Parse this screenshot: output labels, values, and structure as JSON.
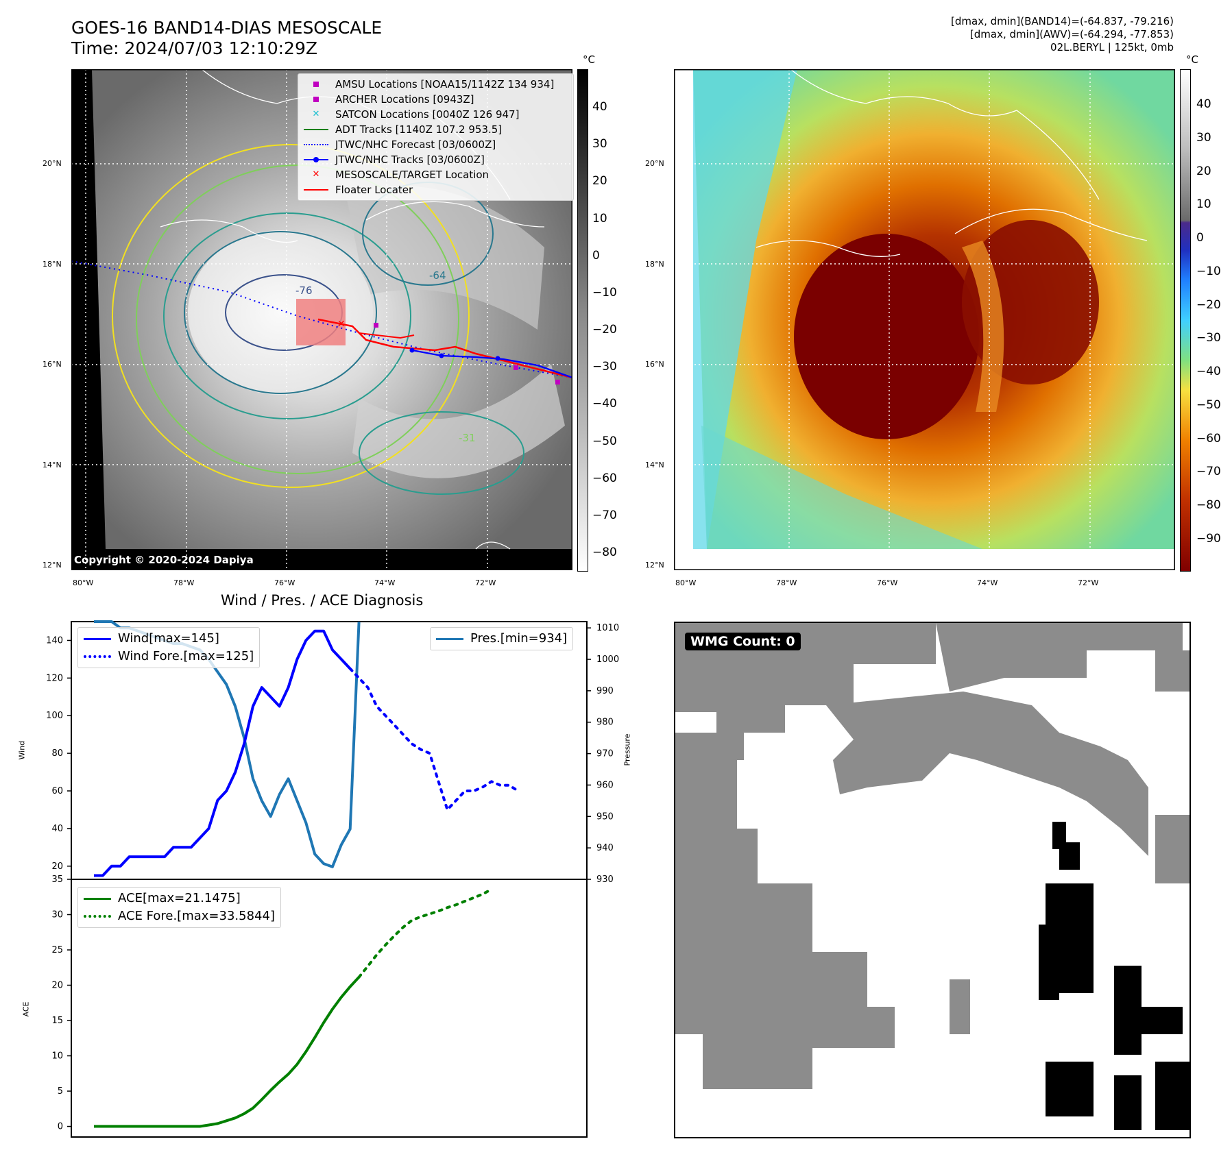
{
  "header": {
    "title_line1": "GOES-16 BAND14-DIAS MESOSCALE",
    "title_line2": "Time: 2024/07/03 12:10:29Z",
    "info_line1": "[dmax, dmin](BAND14)=(-64.837, -79.216)",
    "info_line2": "[dmax, dmin](AWV)=(-64.294, -77.853)",
    "info_line3": "02L.BERYL | 125kt, 0mb"
  },
  "map": {
    "lat_labels": [
      "20°N",
      "18°N",
      "16°N",
      "14°N",
      "12°N"
    ],
    "lon_labels": [
      "80°W",
      "78°W",
      "76°W",
      "74°W",
      "72°W"
    ],
    "unit": "°C",
    "copyright": "Copyright © 2020-2024 Dapiya",
    "contour_labels": [
      "-76",
      "-64",
      "-31"
    ],
    "legend": [
      {
        "label": "AMSU Locations [NOAA15/1142Z 134 934]",
        "color": "#c000c0",
        "marker": "square"
      },
      {
        "label": "ARCHER Locations [0943Z]",
        "color": "#c000c0",
        "marker": "square"
      },
      {
        "label": "SATCON Locations [0040Z 126 947]",
        "color": "#17becf",
        "marker": "x"
      },
      {
        "label": "ADT Tracks [1140Z 107.2 953.5]",
        "color": "#008000",
        "marker": "line"
      },
      {
        "label": "JTWC/NHC Forecast [03/0600Z]",
        "color": "#0000ff",
        "marker": "dotted"
      },
      {
        "label": "JTWC/NHC Tracks [03/0600Z]",
        "color": "#0000ff",
        "marker": "line-dot"
      },
      {
        "label": "MESOSCALE/TARGET Location",
        "color": "#ff0000",
        "marker": "x"
      },
      {
        "label": "Floater Locater",
        "color": "#ff0000",
        "marker": "line"
      }
    ],
    "gray_colorbar_ticks": [
      "40",
      "30",
      "20",
      "10",
      "0",
      "−10",
      "−20",
      "−30",
      "−40",
      "−50",
      "−60",
      "−70",
      "−80"
    ],
    "color_colorbar_ticks": [
      "40",
      "30",
      "20",
      "10",
      "0",
      "−10",
      "−20",
      "−30",
      "−40",
      "−50",
      "−60",
      "−70",
      "−80",
      "−90"
    ]
  },
  "diagnosis": {
    "title": "Wind / Pres. / ACE Diagnosis",
    "wind_ylabel": "Wind",
    "pres_ylabel": "Pressure",
    "ace_ylabel": "ACE",
    "wind_ticks": [
      "140",
      "120",
      "100",
      "80",
      "60",
      "40",
      "20"
    ],
    "pres_ticks": [
      "1010",
      "1000",
      "990",
      "980",
      "970",
      "960",
      "950",
      "940",
      "930"
    ],
    "ace_ticks": [
      "35",
      "30",
      "25",
      "20",
      "15",
      "10",
      "5",
      "0"
    ],
    "legend_wind": "Wind[max=145]",
    "legend_wind_fore": "Wind Fore.[max=125]",
    "legend_pres": "Pres.[min=934]",
    "legend_ace": "ACE[max=21.1475]",
    "legend_ace_fore": "ACE Fore.[max=33.5844]",
    "colors": {
      "wind": "#0000ff",
      "pres": "#1f77b4",
      "ace": "#008000"
    }
  },
  "wmg": {
    "label": "WMG Count: 0"
  },
  "chart_data": [
    {
      "type": "line",
      "title": "Wind / Pres. / ACE Diagnosis",
      "ylabel": "Wind",
      "ylim": [
        13,
        150
      ],
      "series": [
        {
          "name": "Wind[max=145]",
          "values": [
            15,
            15,
            20,
            20,
            25,
            25,
            25,
            25,
            25,
            30,
            30,
            30,
            35,
            40,
            55,
            60,
            70,
            85,
            105,
            115,
            110,
            105,
            115,
            130,
            140,
            145,
            145,
            135,
            130,
            125
          ]
        },
        {
          "name": "Wind Fore.[max=125]",
          "x_start_index": 29,
          "values": [
            125,
            120,
            115,
            105,
            100,
            95,
            90,
            85,
            82,
            80,
            65,
            50,
            55,
            60,
            60,
            62,
            65,
            63,
            63,
            60
          ]
        }
      ]
    },
    {
      "type": "line",
      "ylabel": "Pressure",
      "ylim": [
        930,
        1012
      ],
      "series": [
        {
          "name": "Pres.[min=934]",
          "values": [
            1013,
            1013,
            1012,
            1010,
            1010,
            1009,
            1008,
            1007,
            1006,
            1005,
            1005,
            1004,
            1003,
            1000,
            996,
            992,
            985,
            975,
            962,
            955,
            950,
            957,
            962,
            955,
            948,
            938,
            935,
            934,
            941,
            946,
            1013
          ]
        }
      ]
    },
    {
      "type": "line",
      "ylabel": "ACE",
      "ylim": [
        -1.5,
        35
      ],
      "series": [
        {
          "name": "ACE[max=21.1475]",
          "values": [
            0,
            0,
            0,
            0,
            0,
            0,
            0,
            0,
            0,
            0,
            0,
            0,
            0,
            0.2,
            0.4,
            0.8,
            1.2,
            1.8,
            2.6,
            3.8,
            5.1,
            6.3,
            7.4,
            8.8,
            10.6,
            12.6,
            14.7,
            16.6,
            18.3,
            19.8,
            21.1475
          ]
        },
        {
          "name": "ACE Fore.[max=33.5844]",
          "x_start_index": 30,
          "values": [
            21.1475,
            22.7,
            24.3,
            25.7,
            27,
            28.2,
            29.2,
            29.7,
            30.1,
            30.5,
            31,
            31.4,
            31.9,
            32.4,
            32.9,
            33.5844
          ]
        }
      ]
    }
  ]
}
